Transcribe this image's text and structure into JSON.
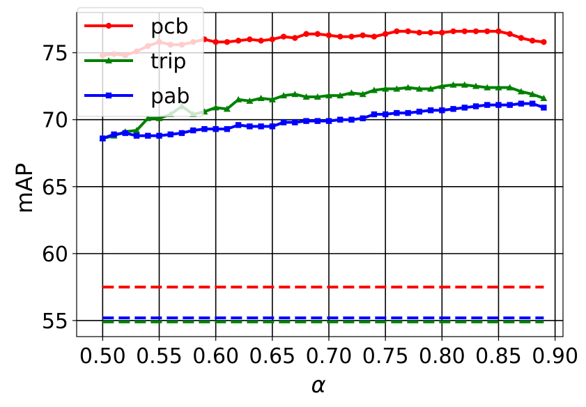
{
  "chart_data": {
    "type": "line",
    "xlabel": "α",
    "ylabel": "mAP",
    "xlim": [
      0.477,
      0.907
    ],
    "ylim": [
      53.8,
      78.0
    ],
    "xticks": [
      0.5,
      0.55,
      0.6,
      0.65,
      0.7,
      0.75,
      0.8,
      0.85,
      0.9
    ],
    "xtick_labels": [
      "0.50",
      "0.55",
      "0.60",
      "0.65",
      "0.70",
      "0.75",
      "0.80",
      "0.85",
      "0.90"
    ],
    "yticks": [
      55,
      60,
      65,
      70,
      75
    ],
    "ytick_labels": [
      "55",
      "60",
      "65",
      "70",
      "75"
    ],
    "grid": true,
    "legend_position": "top-left",
    "x": [
      0.5,
      0.51,
      0.52,
      0.53,
      0.54,
      0.55,
      0.56,
      0.57,
      0.58,
      0.59,
      0.6,
      0.61,
      0.62,
      0.63,
      0.64,
      0.65,
      0.66,
      0.67,
      0.68,
      0.69,
      0.7,
      0.71,
      0.72,
      0.73,
      0.74,
      0.75,
      0.76,
      0.77,
      0.78,
      0.79,
      0.8,
      0.81,
      0.82,
      0.83,
      0.84,
      0.85,
      0.86,
      0.87,
      0.88,
      0.89
    ],
    "series": [
      {
        "name": "pcb",
        "color": "#ff0000",
        "marker": "circle",
        "values": [
          74.8,
          74.9,
          74.8,
          75.1,
          75.5,
          75.8,
          75.6,
          75.6,
          75.8,
          76.0,
          75.8,
          75.8,
          75.9,
          76.0,
          75.9,
          76.0,
          76.2,
          76.1,
          76.4,
          76.4,
          76.3,
          76.2,
          76.2,
          76.3,
          76.2,
          76.4,
          76.6,
          76.6,
          76.5,
          76.5,
          76.5,
          76.6,
          76.6,
          76.6,
          76.6,
          76.6,
          76.4,
          76.1,
          75.9,
          75.8
        ],
        "baseline": 57.5
      },
      {
        "name": "trip",
        "color": "#008000",
        "marker": "triangle",
        "values": [
          68.6,
          68.8,
          69.1,
          69.2,
          70.1,
          70.1,
          70.4,
          71.0,
          70.4,
          70.6,
          70.9,
          70.8,
          71.5,
          71.4,
          71.6,
          71.5,
          71.8,
          71.9,
          71.7,
          71.7,
          71.8,
          71.8,
          72.0,
          71.9,
          72.2,
          72.3,
          72.3,
          72.4,
          72.3,
          72.3,
          72.5,
          72.6,
          72.6,
          72.5,
          72.4,
          72.4,
          72.4,
          72.1,
          71.9,
          71.6
        ],
        "baseline": 54.9
      },
      {
        "name": "pab",
        "color": "#0000ff",
        "marker": "square",
        "values": [
          68.6,
          68.9,
          69.0,
          68.8,
          68.8,
          68.8,
          68.9,
          69.0,
          69.2,
          69.3,
          69.3,
          69.3,
          69.6,
          69.5,
          69.5,
          69.5,
          69.8,
          69.8,
          69.9,
          69.9,
          69.9,
          70.0,
          70.0,
          70.1,
          70.4,
          70.4,
          70.5,
          70.5,
          70.6,
          70.7,
          70.7,
          70.8,
          70.9,
          71.0,
          71.1,
          71.1,
          71.1,
          71.2,
          71.2,
          70.9
        ],
        "baseline": 55.2
      }
    ]
  }
}
